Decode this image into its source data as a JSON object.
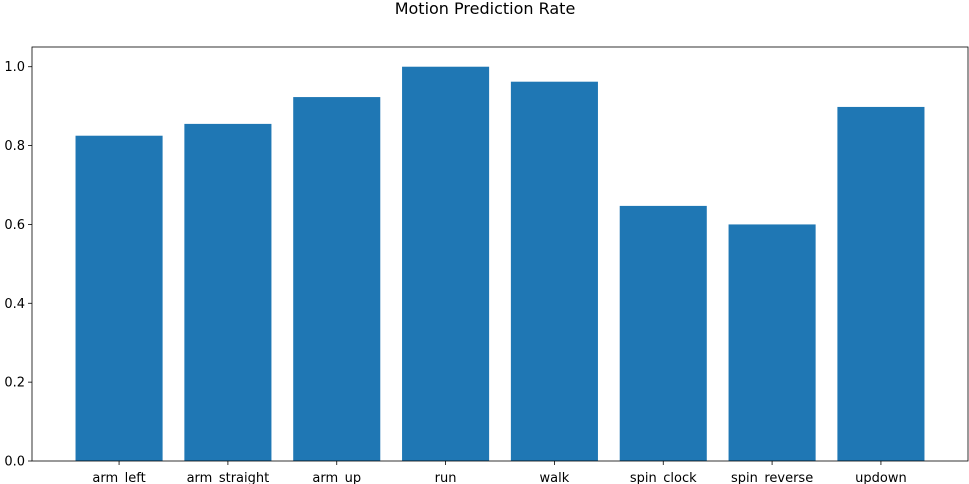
{
  "chart_data": {
    "type": "bar",
    "title": "Motion Prediction Rate",
    "xlabel": "",
    "ylabel": "",
    "categories": [
      "arm_left",
      "arm_straight",
      "arm_up",
      "run",
      "walk",
      "spin_clock",
      "spin_reverse",
      "updown"
    ],
    "values": [
      0.825,
      0.855,
      0.923,
      1.0,
      0.962,
      0.647,
      0.6,
      0.898
    ],
    "ylim": [
      0,
      1.05
    ],
    "yticks": [
      0.0,
      0.2,
      0.4,
      0.6,
      0.8,
      1.0
    ],
    "ytick_labels": [
      "0.0",
      "0.2",
      "0.4",
      "0.6",
      "0.8",
      "1.0"
    ],
    "bar_color": "#1f77b4",
    "grid": false,
    "legend": "none"
  }
}
